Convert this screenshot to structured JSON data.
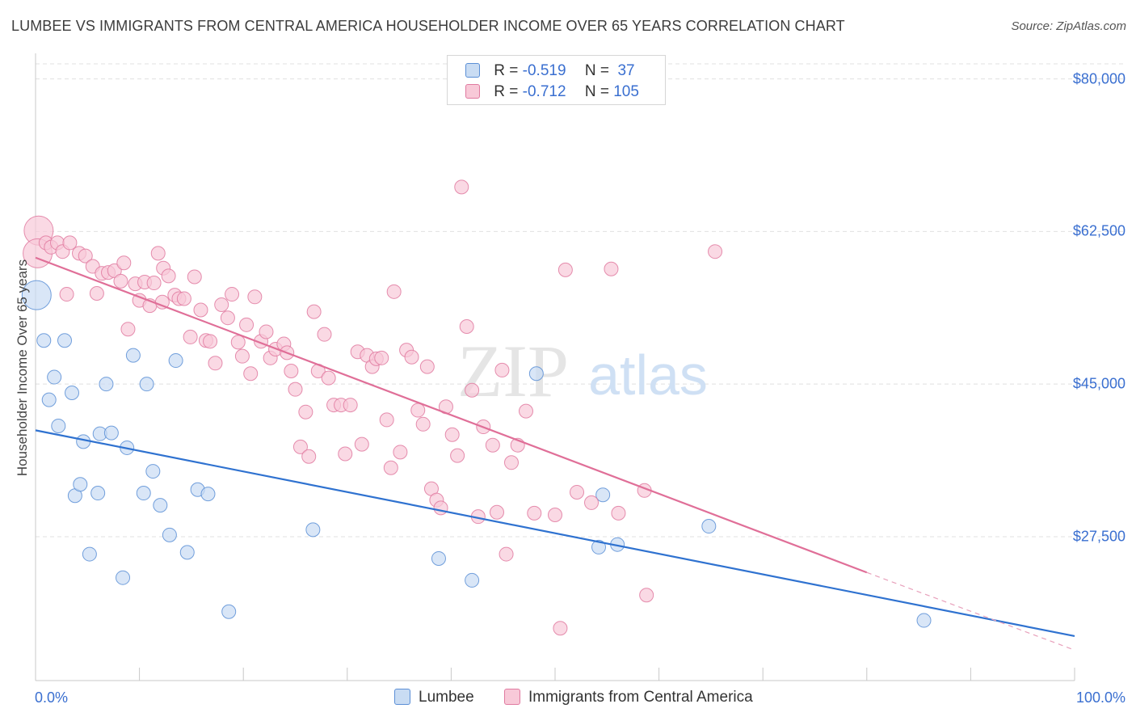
{
  "title": "LUMBEE VS IMMIGRANTS FROM CENTRAL AMERICA HOUSEHOLDER INCOME OVER 65 YEARS CORRELATION CHART",
  "source": "Source: ZipAtlas.com",
  "watermark": {
    "zip": "ZIP",
    "atlas": "atlas"
  },
  "legend": {
    "series1": {
      "r_label": "R = ",
      "r_value": "-0.519",
      "n_label": "N = ",
      "n_value": " 37"
    },
    "series2": {
      "r_label": "R = ",
      "r_value": "-0.712",
      "n_label": "N = ",
      "n_value": "105"
    }
  },
  "bottom_legend": {
    "series1": "Lumbee",
    "series2": "Immigrants from Central America"
  },
  "chart_data": {
    "type": "scatter",
    "title": "LUMBEE VS IMMIGRANTS FROM CENTRAL AMERICA HOUSEHOLDER INCOME OVER 65 YEARS CORRELATION CHART",
    "xlabel": "",
    "ylabel": "Householder Income Over 65 years",
    "xlim": [
      0,
      100
    ],
    "ylim": [
      11000,
      82000
    ],
    "x_tick_labels": [
      "0.0%",
      "100.0%"
    ],
    "y_ticks": [
      27500,
      45000,
      62500,
      80000
    ],
    "y_tick_labels": [
      "$27,500",
      "$45,000",
      "$62,500",
      "$80,000"
    ],
    "grid": "horizontal dashed",
    "colors": {
      "lumbee": "#5b8fd6",
      "lumbee_fill": "#c9dcf3",
      "immigrants": "#e07aa0",
      "immigrants_fill": "#f8c9d8",
      "accent": "#3a6fd0"
    },
    "series": [
      {
        "name": "Lumbee",
        "color": "#5b8fd6",
        "trend": {
          "x": [
            0,
            100
          ],
          "y": [
            39700,
            16100
          ]
        },
        "points": [
          {
            "x": 0.1,
            "y": 55200,
            "big": true
          },
          {
            "x": 0.8,
            "y": 50000
          },
          {
            "x": 1.3,
            "y": 43200
          },
          {
            "x": 1.8,
            "y": 45800
          },
          {
            "x": 2.2,
            "y": 40200
          },
          {
            "x": 2.8,
            "y": 50000
          },
          {
            "x": 3.5,
            "y": 44000
          },
          {
            "x": 3.8,
            "y": 32200
          },
          {
            "x": 4.3,
            "y": 33500
          },
          {
            "x": 4.6,
            "y": 38400
          },
          {
            "x": 5.2,
            "y": 25500
          },
          {
            "x": 6.0,
            "y": 32500
          },
          {
            "x": 6.2,
            "y": 39300
          },
          {
            "x": 6.8,
            "y": 45000
          },
          {
            "x": 7.3,
            "y": 39400
          },
          {
            "x": 8.4,
            "y": 22800
          },
          {
            "x": 8.8,
            "y": 37700
          },
          {
            "x": 9.4,
            "y": 48300
          },
          {
            "x": 10.4,
            "y": 32500
          },
          {
            "x": 10.7,
            "y": 45000
          },
          {
            "x": 11.3,
            "y": 35000
          },
          {
            "x": 12.0,
            "y": 31100
          },
          {
            "x": 12.9,
            "y": 27700
          },
          {
            "x": 13.5,
            "y": 47700
          },
          {
            "x": 14.6,
            "y": 25700
          },
          {
            "x": 15.6,
            "y": 32900
          },
          {
            "x": 16.6,
            "y": 32400
          },
          {
            "x": 18.6,
            "y": 18900
          },
          {
            "x": 26.7,
            "y": 28300
          },
          {
            "x": 38.8,
            "y": 25000
          },
          {
            "x": 42.0,
            "y": 22500
          },
          {
            "x": 48.2,
            "y": 46200
          },
          {
            "x": 54.2,
            "y": 26300
          },
          {
            "x": 54.6,
            "y": 32300
          },
          {
            "x": 56.0,
            "y": 26600
          },
          {
            "x": 64.8,
            "y": 28700
          },
          {
            "x": 85.5,
            "y": 17900
          }
        ]
      },
      {
        "name": "Immigrants from Central America",
        "color": "#e07aa0",
        "trend": {
          "x": [
            0,
            80
          ],
          "y": [
            59500,
            23400
          ]
        },
        "trend_dashed": {
          "x": [
            80,
            100
          ],
          "y": [
            23400,
            14500
          ]
        },
        "points": [
          {
            "x": 0.3,
            "y": 62600,
            "big": true
          },
          {
            "x": 0.2,
            "y": 60000,
            "big": true
          },
          {
            "x": 1.0,
            "y": 61200
          },
          {
            "x": 1.5,
            "y": 60700
          },
          {
            "x": 2.1,
            "y": 61200
          },
          {
            "x": 2.6,
            "y": 60200
          },
          {
            "x": 3.0,
            "y": 55300
          },
          {
            "x": 3.3,
            "y": 61200
          },
          {
            "x": 4.2,
            "y": 60000
          },
          {
            "x": 4.8,
            "y": 59700
          },
          {
            "x": 5.5,
            "y": 58500
          },
          {
            "x": 5.9,
            "y": 55400
          },
          {
            "x": 6.4,
            "y": 57700
          },
          {
            "x": 7.0,
            "y": 57800
          },
          {
            "x": 7.6,
            "y": 58000
          },
          {
            "x": 8.2,
            "y": 56800
          },
          {
            "x": 8.5,
            "y": 58900
          },
          {
            "x": 8.9,
            "y": 51300
          },
          {
            "x": 9.6,
            "y": 56500
          },
          {
            "x": 10.0,
            "y": 54600
          },
          {
            "x": 10.5,
            "y": 56700
          },
          {
            "x": 11.0,
            "y": 54000
          },
          {
            "x": 11.4,
            "y": 56600
          },
          {
            "x": 12.2,
            "y": 54400
          },
          {
            "x": 11.8,
            "y": 60000
          },
          {
            "x": 12.3,
            "y": 58300
          },
          {
            "x": 12.8,
            "y": 57400
          },
          {
            "x": 13.4,
            "y": 55200
          },
          {
            "x": 13.8,
            "y": 54800
          },
          {
            "x": 14.3,
            "y": 54800
          },
          {
            "x": 14.9,
            "y": 50400
          },
          {
            "x": 15.3,
            "y": 57300
          },
          {
            "x": 15.9,
            "y": 53500
          },
          {
            "x": 16.4,
            "y": 50000
          },
          {
            "x": 16.8,
            "y": 49900
          },
          {
            "x": 17.3,
            "y": 47400
          },
          {
            "x": 17.9,
            "y": 54100
          },
          {
            "x": 18.5,
            "y": 52600
          },
          {
            "x": 18.9,
            "y": 55300
          },
          {
            "x": 19.5,
            "y": 49800
          },
          {
            "x": 19.9,
            "y": 48200
          },
          {
            "x": 20.3,
            "y": 51800
          },
          {
            "x": 20.7,
            "y": 46200
          },
          {
            "x": 21.1,
            "y": 55000
          },
          {
            "x": 21.7,
            "y": 49900
          },
          {
            "x": 22.2,
            "y": 51000
          },
          {
            "x": 22.6,
            "y": 48000
          },
          {
            "x": 23.1,
            "y": 49000
          },
          {
            "x": 23.9,
            "y": 49600
          },
          {
            "x": 24.2,
            "y": 48600
          },
          {
            "x": 24.6,
            "y": 46500
          },
          {
            "x": 25.0,
            "y": 44400
          },
          {
            "x": 25.5,
            "y": 37800
          },
          {
            "x": 26.0,
            "y": 41800
          },
          {
            "x": 26.3,
            "y": 36700
          },
          {
            "x": 26.8,
            "y": 53300
          },
          {
            "x": 27.2,
            "y": 46500
          },
          {
            "x": 27.8,
            "y": 50700
          },
          {
            "x": 28.2,
            "y": 45700
          },
          {
            "x": 28.7,
            "y": 42600
          },
          {
            "x": 29.4,
            "y": 42600
          },
          {
            "x": 29.8,
            "y": 37000
          },
          {
            "x": 30.3,
            "y": 42600
          },
          {
            "x": 31.0,
            "y": 48700
          },
          {
            "x": 31.4,
            "y": 38100
          },
          {
            "x": 31.9,
            "y": 48300
          },
          {
            "x": 32.4,
            "y": 47000
          },
          {
            "x": 32.8,
            "y": 47900
          },
          {
            "x": 33.3,
            "y": 48000
          },
          {
            "x": 33.8,
            "y": 40900
          },
          {
            "x": 34.2,
            "y": 35400
          },
          {
            "x": 34.5,
            "y": 55600
          },
          {
            "x": 35.1,
            "y": 37200
          },
          {
            "x": 35.7,
            "y": 48900
          },
          {
            "x": 36.2,
            "y": 48100
          },
          {
            "x": 36.8,
            "y": 42000
          },
          {
            "x": 37.3,
            "y": 40400
          },
          {
            "x": 37.7,
            "y": 47000
          },
          {
            "x": 38.1,
            "y": 33000
          },
          {
            "x": 38.6,
            "y": 31700
          },
          {
            "x": 39.0,
            "y": 30800
          },
          {
            "x": 39.5,
            "y": 42400
          },
          {
            "x": 40.1,
            "y": 39200
          },
          {
            "x": 40.6,
            "y": 36800
          },
          {
            "x": 41.0,
            "y": 67600
          },
          {
            "x": 41.5,
            "y": 51600
          },
          {
            "x": 42.0,
            "y": 44300
          },
          {
            "x": 42.6,
            "y": 29800
          },
          {
            "x": 43.1,
            "y": 40100
          },
          {
            "x": 44.0,
            "y": 38000
          },
          {
            "x": 44.4,
            "y": 30300
          },
          {
            "x": 44.9,
            "y": 46600
          },
          {
            "x": 45.3,
            "y": 25500
          },
          {
            "x": 45.8,
            "y": 36000
          },
          {
            "x": 46.4,
            "y": 38000
          },
          {
            "x": 47.2,
            "y": 41900
          },
          {
            "x": 48.0,
            "y": 30200
          },
          {
            "x": 50.0,
            "y": 30000
          },
          {
            "x": 50.5,
            "y": 17000
          },
          {
            "x": 51.0,
            "y": 58100
          },
          {
            "x": 52.1,
            "y": 32600
          },
          {
            "x": 53.5,
            "y": 31400
          },
          {
            "x": 55.4,
            "y": 58200
          },
          {
            "x": 56.1,
            "y": 30200
          },
          {
            "x": 58.6,
            "y": 32800
          },
          {
            "x": 58.8,
            "y": 20800
          },
          {
            "x": 65.4,
            "y": 60200
          }
        ]
      }
    ]
  }
}
